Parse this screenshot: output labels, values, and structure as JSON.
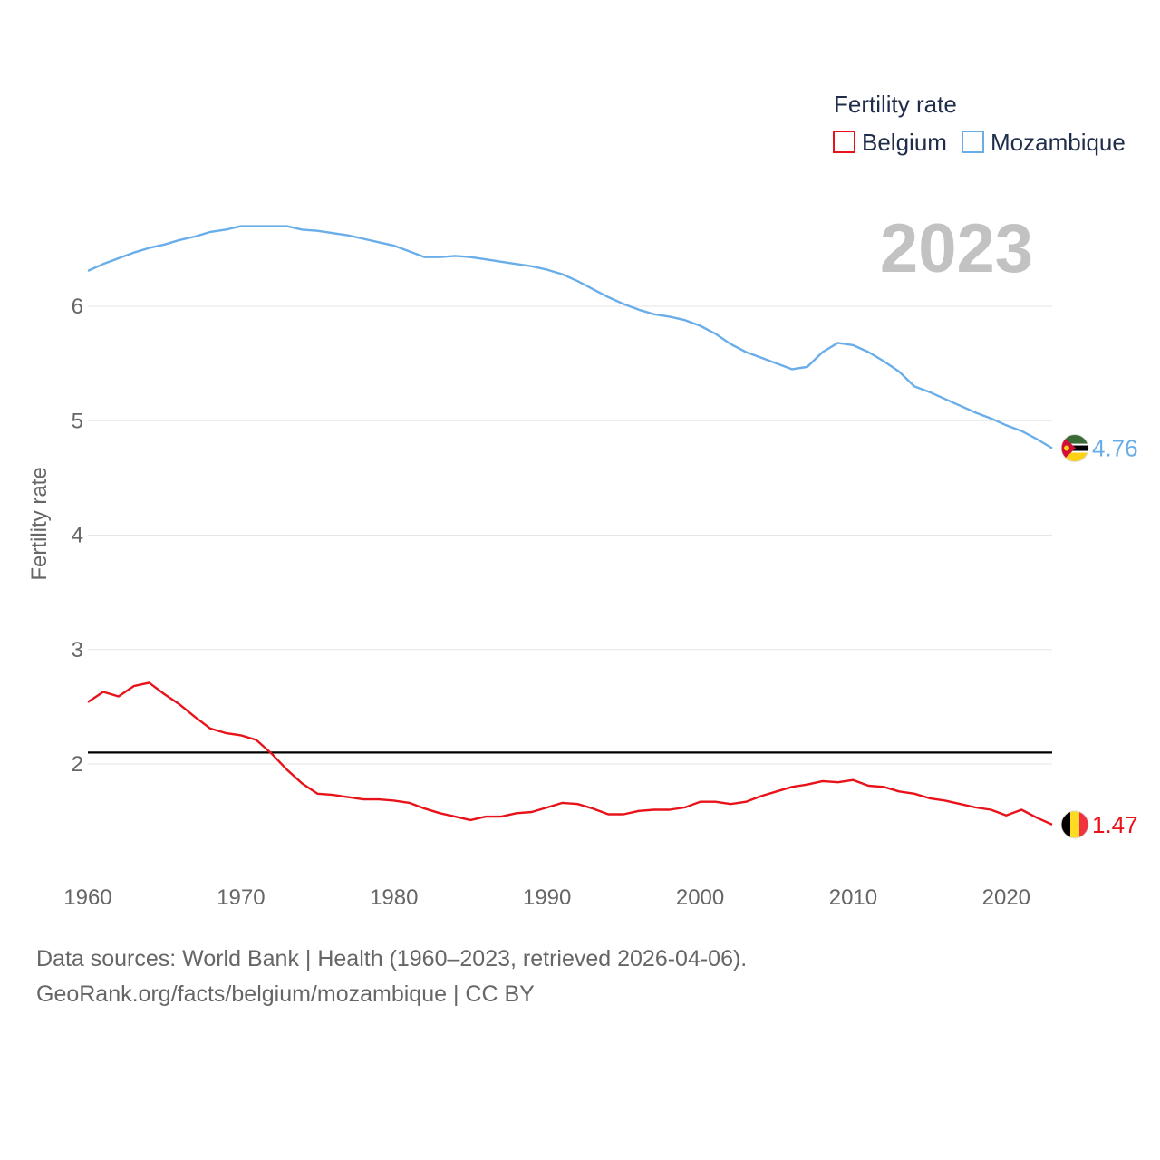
{
  "chart_data": {
    "type": "line",
    "ylabel": "Fertility rate",
    "xlabel": "",
    "current_year": "2023",
    "legend_title": "Fertility rate",
    "xlim": [
      1960,
      2023
    ],
    "ylim": [
      1.2,
      6.8
    ],
    "xticks": [
      1960,
      1970,
      1980,
      1990,
      2000,
      2010,
      2020
    ],
    "yticks": [
      2,
      3,
      4,
      5,
      6
    ],
    "reference_line": {
      "value": 2.1,
      "color": "#000000"
    },
    "x": [
      1960,
      1961,
      1962,
      1963,
      1964,
      1965,
      1966,
      1967,
      1968,
      1969,
      1970,
      1971,
      1972,
      1973,
      1974,
      1975,
      1976,
      1977,
      1978,
      1979,
      1980,
      1981,
      1982,
      1983,
      1984,
      1985,
      1986,
      1987,
      1988,
      1989,
      1990,
      1991,
      1992,
      1993,
      1994,
      1995,
      1996,
      1997,
      1998,
      1999,
      2000,
      2001,
      2002,
      2003,
      2004,
      2005,
      2006,
      2007,
      2008,
      2009,
      2010,
      2011,
      2012,
      2013,
      2014,
      2015,
      2016,
      2017,
      2018,
      2019,
      2020,
      2021,
      2022,
      2023
    ],
    "series": [
      {
        "name": "Mozambique",
        "color": "#6aaee9",
        "end_label": "4.76",
        "values": [
          6.31,
          6.37,
          6.42,
          6.47,
          6.51,
          6.54,
          6.58,
          6.61,
          6.65,
          6.67,
          6.7,
          6.7,
          6.7,
          6.7,
          6.67,
          6.66,
          6.64,
          6.62,
          6.59,
          6.56,
          6.53,
          6.48,
          6.43,
          6.43,
          6.44,
          6.43,
          6.41,
          6.39,
          6.37,
          6.35,
          6.32,
          6.28,
          6.22,
          6.15,
          6.08,
          6.02,
          5.97,
          5.93,
          5.91,
          5.88,
          5.83,
          5.76,
          5.67,
          5.6,
          5.55,
          5.5,
          5.45,
          5.47,
          5.6,
          5.68,
          5.66,
          5.6,
          5.52,
          5.43,
          5.3,
          5.25,
          5.19,
          5.13,
          5.07,
          5.02,
          4.96,
          4.91,
          4.84,
          4.76
        ]
      },
      {
        "name": "Belgium",
        "color": "#e8131a",
        "end_label": "1.47",
        "values": [
          2.54,
          2.63,
          2.59,
          2.68,
          2.71,
          2.61,
          2.52,
          2.41,
          2.31,
          2.27,
          2.25,
          2.21,
          2.09,
          1.95,
          1.83,
          1.74,
          1.73,
          1.71,
          1.69,
          1.69,
          1.68,
          1.66,
          1.61,
          1.57,
          1.54,
          1.51,
          1.54,
          1.54,
          1.57,
          1.58,
          1.62,
          1.66,
          1.65,
          1.61,
          1.56,
          1.56,
          1.59,
          1.6,
          1.6,
          1.62,
          1.67,
          1.67,
          1.65,
          1.67,
          1.72,
          1.76,
          1.8,
          1.82,
          1.85,
          1.84,
          1.86,
          1.81,
          1.8,
          1.76,
          1.74,
          1.7,
          1.68,
          1.65,
          1.62,
          1.6,
          1.55,
          1.6,
          1.53,
          1.47
        ]
      }
    ],
    "legend_order": [
      "Belgium",
      "Mozambique"
    ]
  },
  "footer": {
    "source_line": "Data sources: World Bank | Health (1960–2023, retrieved 2026-04-06).",
    "url_line": "GeoRank.org/facts/belgium/mozambique | CC BY"
  }
}
